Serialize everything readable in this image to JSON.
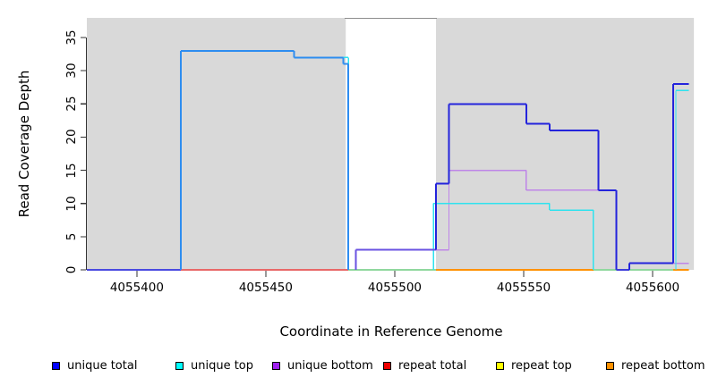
{
  "chart_data": {
    "type": "line",
    "step": true,
    "title": "",
    "xlabel": "Coordinate in Reference Genome",
    "ylabel": "Read Coverage Depth",
    "xlim": [
      4055380,
      4055617
    ],
    "ylim": [
      0,
      38
    ],
    "grid": false,
    "legend_position": "bottom",
    "x_ticks": [
      4055400,
      4055450,
      4055500,
      4055550,
      4055600
    ],
    "y_ticks": [
      0,
      5,
      10,
      15,
      20,
      25,
      30,
      35
    ],
    "shaded_regions": [
      {
        "name": "unique-region-left",
        "from": 4055380.6,
        "to": 4055481,
        "color": "#d9d9d9"
      },
      {
        "name": "unique-region-right",
        "from": 4055516,
        "to": 4055616,
        "color": "#d9d9d9"
      }
    ],
    "gap_region": {
      "name": "repeat-region-gap",
      "from": 4055481,
      "to": 4055516,
      "top_border_color": "#8c8c8c"
    },
    "overlap_note": "Left plateau (33/32/31) is unique total and unique top overlapping (renders azure); the 3-depth plateau in the gap is unique total over unique bottom (renders violet); zero-depth baseline shows whichever repeat/unique series is on top.",
    "series": [
      {
        "name": "unique total",
        "color": "#2424dc",
        "width": 2,
        "steps": [
          {
            "x0": 4055380.6,
            "x1": 4055417,
            "v": 0
          },
          {
            "x0": 4055417,
            "x1": 4055461,
            "v": 33,
            "c": "#2e8df0"
          },
          {
            "x0": 4055461,
            "x1": 4055480,
            "v": 32,
            "c": "#2e8df0"
          },
          {
            "x0": 4055480,
            "x1": 4055482,
            "v": 31,
            "c": "#2e8df0"
          },
          {
            "x0": 4055482,
            "x1": 4055485,
            "v": 0
          },
          {
            "x0": 4055485,
            "x1": 4055516,
            "v": 3,
            "c": "#6a52e2"
          },
          {
            "x0": 4055516,
            "x1": 4055521,
            "v": 13
          },
          {
            "x0": 4055521,
            "x1": 4055551,
            "v": 25
          },
          {
            "x0": 4055551,
            "x1": 4055560,
            "v": 22
          },
          {
            "x0": 4055560,
            "x1": 4055579,
            "v": 21
          },
          {
            "x0": 4055579,
            "x1": 4055586,
            "v": 12
          },
          {
            "x0": 4055586,
            "x1": 4055591,
            "v": 0,
            "c": "#3c3cda"
          },
          {
            "x0": 4055591,
            "x1": 4055608,
            "v": 1
          },
          {
            "x0": 4055608,
            "x1": 4055614,
            "v": 28
          }
        ]
      },
      {
        "name": "unique top",
        "color": "#2ee2ee",
        "width": 1.4,
        "steps": [
          {
            "x0": 4055380.6,
            "x1": 4055417,
            "v": 0
          },
          {
            "x0": 4055417,
            "x1": 4055461,
            "v": 33
          },
          {
            "x0": 4055461,
            "x1": 4055482,
            "v": 32
          },
          {
            "x0": 4055482,
            "x1": 4055515,
            "v": 0
          },
          {
            "x0": 4055515,
            "x1": 4055560,
            "v": 10
          },
          {
            "x0": 4055560,
            "x1": 4055577,
            "v": 9
          },
          {
            "x0": 4055577,
            "x1": 4055609,
            "v": 0
          },
          {
            "x0": 4055609,
            "x1": 4055614,
            "v": 27
          }
        ]
      },
      {
        "name": "unique bottom",
        "color": "#be85e8",
        "width": 1.4,
        "steps": [
          {
            "x0": 4055380.6,
            "x1": 4055485,
            "v": 0
          },
          {
            "x0": 4055485,
            "x1": 4055521,
            "v": 3
          },
          {
            "x0": 4055521,
            "x1": 4055551,
            "v": 15
          },
          {
            "x0": 4055551,
            "x1": 4055586,
            "v": 12
          },
          {
            "x0": 4055586,
            "x1": 4055591,
            "v": 0
          },
          {
            "x0": 4055591,
            "x1": 4055614,
            "v": 1
          }
        ]
      },
      {
        "name": "repeat total",
        "color": "#e22222",
        "width": 1.4,
        "steps": [
          {
            "x0": 4055380.6,
            "x1": 4055614,
            "v": 0
          }
        ]
      },
      {
        "name": "repeat top",
        "color": "#f2f200",
        "width": 1.4,
        "steps": [
          {
            "x0": 4055380.6,
            "x1": 4055614,
            "v": 0
          }
        ]
      },
      {
        "name": "repeat bottom",
        "color": "#ff9100",
        "width": 1.6,
        "steps": [
          {
            "x0": 4055380.6,
            "x1": 4055614,
            "v": 0
          }
        ]
      }
    ],
    "baseline_segments": [
      {
        "x0": 4055380.6,
        "x1": 4055417,
        "color": "#4a4ae0"
      },
      {
        "x0": 4055417,
        "x1": 4055482,
        "color": "#e86868"
      },
      {
        "x0": 4055482,
        "x1": 4055516,
        "color": "#90d89e"
      },
      {
        "x0": 4055516,
        "x1": 4055577,
        "color": "#ff9100"
      },
      {
        "x0": 4055577,
        "x1": 4055608,
        "color": "#90d89e"
      },
      {
        "x0": 4055608,
        "x1": 4055614,
        "color": "#ff9100"
      }
    ]
  },
  "legend": {
    "items": [
      {
        "label": "unique total",
        "color": "#0000ff"
      },
      {
        "label": "unique top",
        "color": "#00ffff"
      },
      {
        "label": "unique bottom",
        "color": "#a020f0"
      },
      {
        "label": "repeat total",
        "color": "#ee0000"
      },
      {
        "label": "repeat top",
        "color": "#ffff00"
      },
      {
        "label": "repeat bottom",
        "color": "#ff9100"
      }
    ]
  }
}
